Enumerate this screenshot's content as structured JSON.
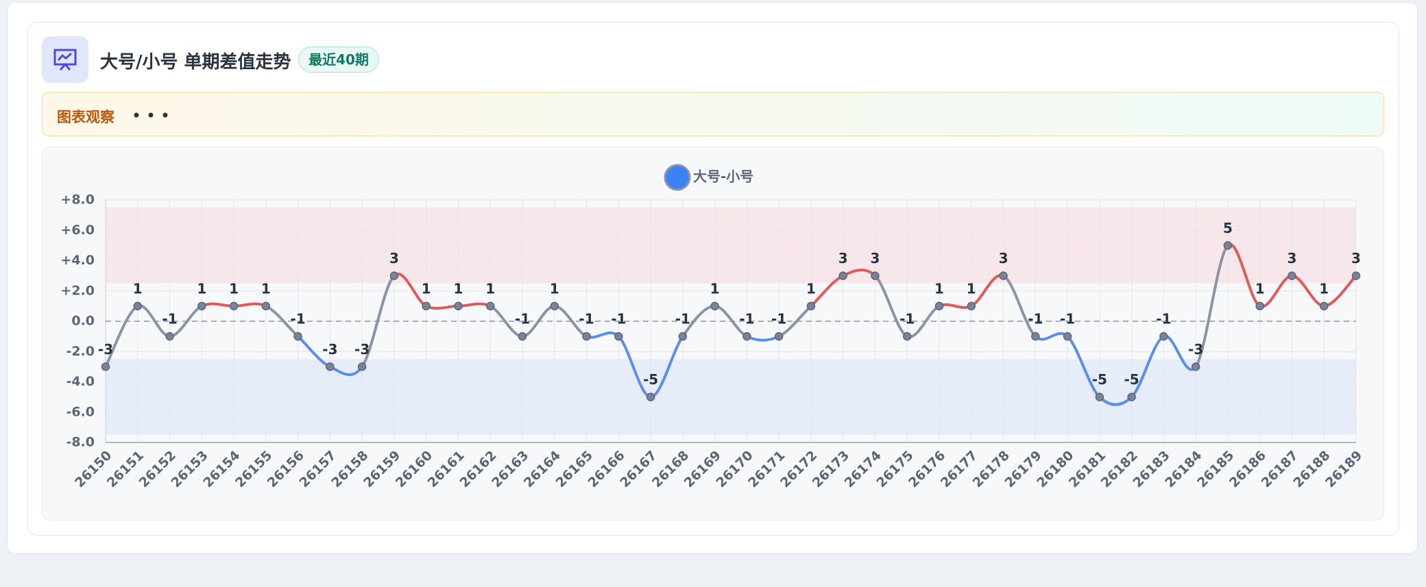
{
  "header": {
    "title": "大号/小号 单期差值走势",
    "badge": "最近40期"
  },
  "observation": {
    "label": "图表观察"
  },
  "chart_data": {
    "type": "line",
    "categories": [
      "26150",
      "26151",
      "26152",
      "26153",
      "26154",
      "26155",
      "26156",
      "26157",
      "26158",
      "26159",
      "26160",
      "26161",
      "26162",
      "26163",
      "26164",
      "26165",
      "26166",
      "26167",
      "26168",
      "26169",
      "26170",
      "26171",
      "26172",
      "26173",
      "26174",
      "26175",
      "26176",
      "26177",
      "26178",
      "26179",
      "26180",
      "26181",
      "26182",
      "26183",
      "26184",
      "26185",
      "26186",
      "26187",
      "26188",
      "26189"
    ],
    "series": [
      {
        "name": "大号-小号",
        "color": "#3b82f6",
        "values": [
          -3,
          1,
          -1,
          1,
          1,
          1,
          -1,
          -3,
          -3,
          3,
          1,
          1,
          1,
          -1,
          1,
          -1,
          -1,
          -5,
          -1,
          1,
          -1,
          -1,
          1,
          3,
          3,
          -1,
          1,
          1,
          3,
          -1,
          -1,
          -5,
          -5,
          -1,
          -3,
          5,
          1,
          3,
          1,
          3
        ]
      }
    ],
    "segment_colors": {
      "positive": "#e05a5a",
      "negative": "#5b8def",
      "mixed": "#8a94a6"
    },
    "bands": [
      {
        "from": 2.5,
        "to": 7.5,
        "color": "#f7e6ea"
      },
      {
        "from": -7.5,
        "to": -2.5,
        "color": "#e6edf9"
      }
    ],
    "ylim": [
      -8,
      8
    ],
    "yticks": [
      {
        "value": 8,
        "label": "+8.0"
      },
      {
        "value": 6,
        "label": "+6.0"
      },
      {
        "value": 4,
        "label": "+4.0"
      },
      {
        "value": 2,
        "label": "+2.0"
      },
      {
        "value": 0,
        "label": "0.0"
      },
      {
        "value": -2,
        "label": "-2.0"
      },
      {
        "value": -4,
        "label": "-4.0"
      },
      {
        "value": -6,
        "label": "-6.0"
      },
      {
        "value": -8,
        "label": "-8.0"
      }
    ],
    "grid": true,
    "zero_line": true,
    "legend": "top"
  }
}
